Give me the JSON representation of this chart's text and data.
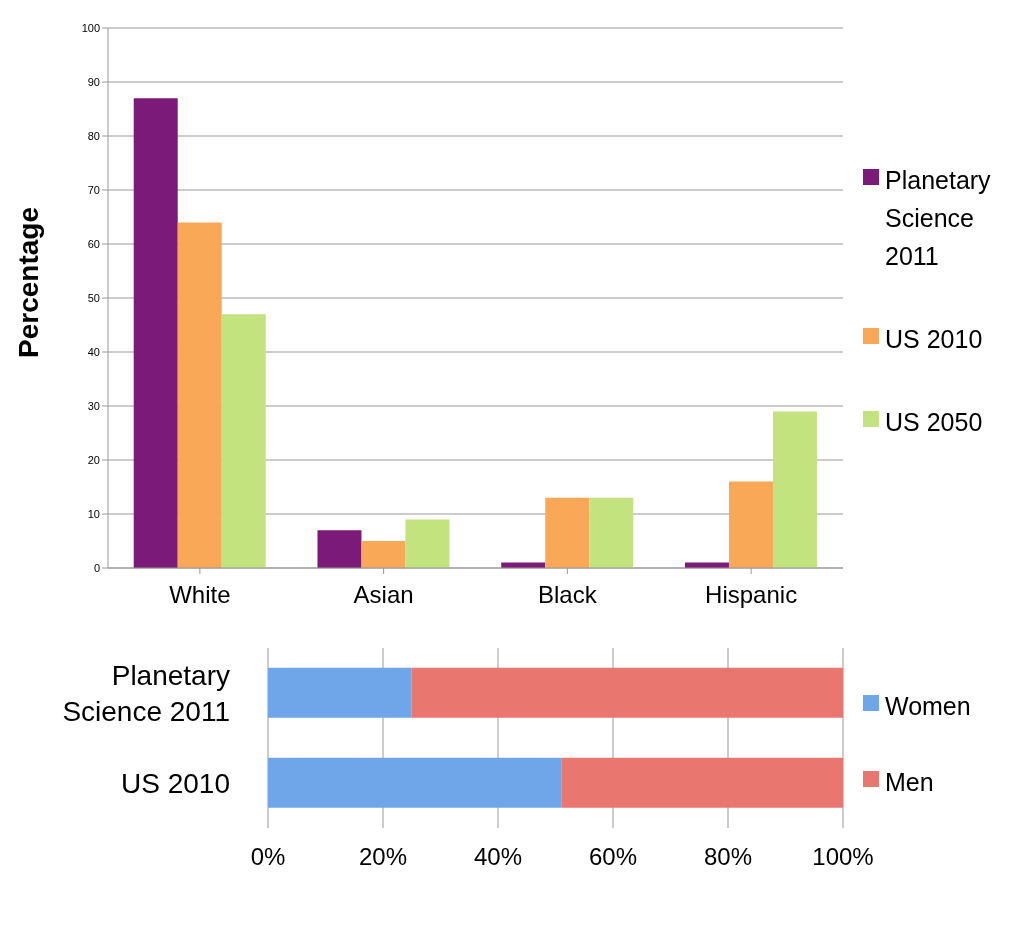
{
  "chart_data": [
    {
      "type": "bar",
      "ylabel": "Percentage",
      "categories": [
        "White",
        "Asian",
        "Black",
        "Hispanic"
      ],
      "series": [
        {
          "name": "Planetary Science 2011",
          "color": "#7b1a78",
          "values": [
            87,
            7,
            1,
            1
          ]
        },
        {
          "name": "US 2010",
          "color": "#f9a857",
          "values": [
            64,
            5,
            13,
            16
          ]
        },
        {
          "name": "US 2050",
          "color": "#c3e37e",
          "values": [
            47,
            9,
            13,
            29
          ]
        }
      ],
      "ylim": [
        0,
        100
      ],
      "yticks": [
        0,
        10,
        20,
        30,
        40,
        50,
        60,
        70,
        80,
        90,
        100
      ],
      "grid": "y",
      "legend": "right"
    },
    {
      "type": "bar",
      "orientation": "horizontal",
      "stacked": true,
      "categories": [
        "Planetary Science 2011",
        "US 2010"
      ],
      "series": [
        {
          "name": "Women",
          "color": "#6fa6ea",
          "values": [
            25,
            51
          ]
        },
        {
          "name": "Men",
          "color": "#ea7670",
          "values": [
            75,
            49
          ]
        }
      ],
      "xlim": [
        0,
        100
      ],
      "xticks": [
        {
          "value": 0,
          "label": "0%"
        },
        {
          "value": 20,
          "label": "20%"
        },
        {
          "value": 40,
          "label": "40%"
        },
        {
          "value": 60,
          "label": "60%"
        },
        {
          "value": 80,
          "label": "80%"
        },
        {
          "value": 100,
          "label": "100%"
        }
      ],
      "grid": "x",
      "legend": "right"
    }
  ]
}
